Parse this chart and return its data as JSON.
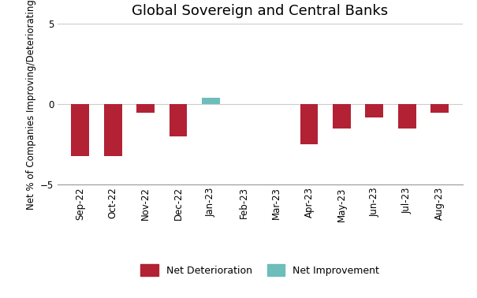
{
  "title": "Global Sovereign and Central Banks",
  "ylabel": "Net % of Companies Improving/Deteriorating",
  "categories": [
    "Sep-22",
    "Oct-22",
    "Nov-22",
    "Dec-22",
    "Jan-23",
    "Feb-23",
    "Mar-23",
    "Apr-23",
    "May-23",
    "Jun-23",
    "Jul-23",
    "Aug-23"
  ],
  "values": [
    -3.2,
    -3.2,
    -0.5,
    -2.0,
    0.4,
    0.0,
    0.0,
    -2.5,
    -1.5,
    -0.8,
    -1.5,
    -0.5
  ],
  "deterioration_color": "#b22234",
  "improvement_color": "#6dbdba",
  "ylim": [
    -5,
    5
  ],
  "yticks": [
    -5,
    0,
    5
  ],
  "background_color": "#ffffff",
  "grid_color": "#cccccc",
  "legend_deterioration": "Net Deterioration",
  "legend_improvement": "Net Improvement",
  "title_fontsize": 13,
  "ylabel_fontsize": 8.5,
  "tick_fontsize": 8.5,
  "bar_width": 0.55
}
